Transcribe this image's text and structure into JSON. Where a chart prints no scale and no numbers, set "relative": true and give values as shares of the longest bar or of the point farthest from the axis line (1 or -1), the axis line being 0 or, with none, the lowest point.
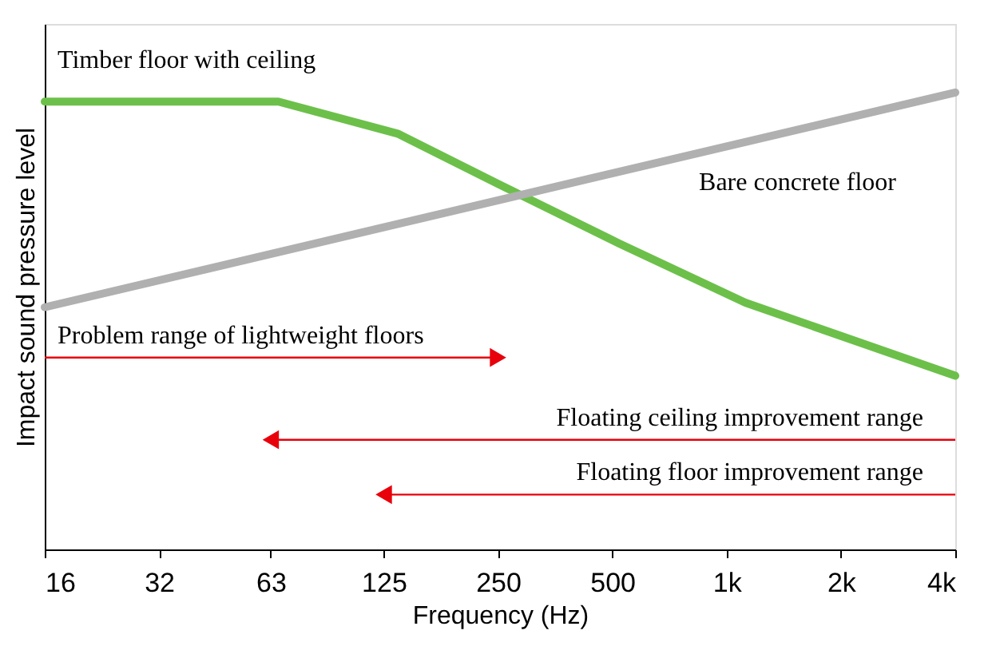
{
  "chart_data": {
    "type": "line",
    "relative": true,
    "xlabel": "Frequency (Hz)",
    "ylabel": "Impact sound pressure level",
    "log": "x",
    "xlim": [
      16,
      4000
    ],
    "xticks": [
      16,
      32,
      63,
      125,
      250,
      500,
      {
        "value": 1000,
        "label": "1k"
      },
      {
        "value": 2000,
        "label": "2k"
      },
      {
        "value": 4000,
        "label": "4k"
      }
    ],
    "grid": false,
    "series": [
      {
        "name": "Timber floor with ceiling",
        "color": "#6cc04a",
        "x": [
          16,
          32,
          66,
          136,
          250,
          520,
          1120,
          4000
        ],
        "values": [
          0.98,
          0.98,
          0.98,
          0.91,
          0.8,
          0.67,
          0.54,
          0.38
        ]
      },
      {
        "name": "Bare concrete floor",
        "color": "#b0b0b0",
        "x": [
          16,
          4000
        ],
        "values": [
          0.53,
          1.0
        ]
      },
      {
        "name": "Problem range of lightweight floors",
        "color": "#e8000b",
        "marker": "triangle",
        "x": [
          16,
          250
        ],
        "values": [
          0.42,
          0.42
        ]
      },
      {
        "name": "Floating ceiling improvement range",
        "color": "#e8000b",
        "marker": "triangle",
        "x": [
          4000,
          63
        ],
        "values": [
          0.24,
          0.24
        ]
      },
      {
        "name": "Floating floor improvement range",
        "color": "#e8000b",
        "marker": "triangle",
        "x": [
          4000,
          125
        ],
        "values": [
          0.12,
          0.12
        ]
      }
    ]
  }
}
